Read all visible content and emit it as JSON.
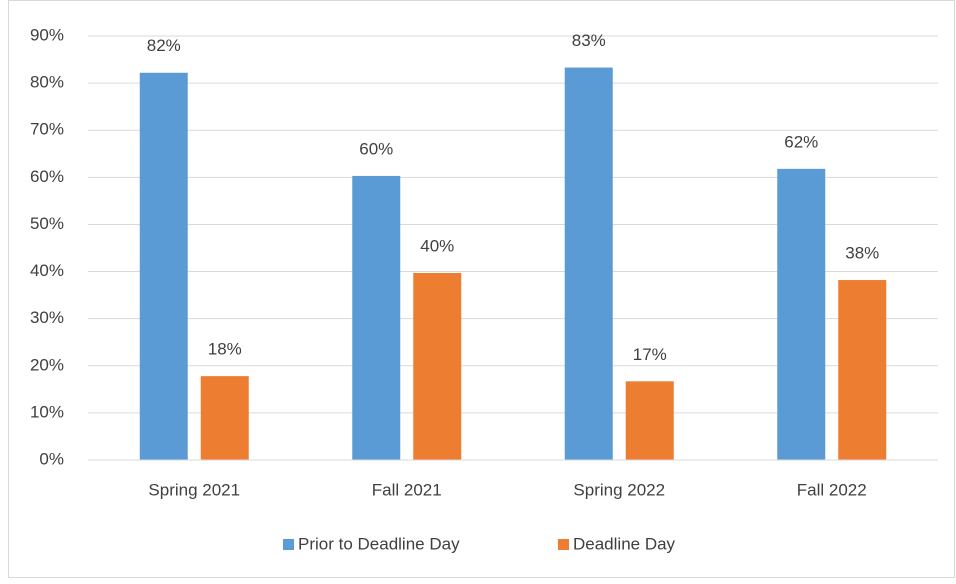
{
  "chart_data": {
    "type": "bar",
    "categories": [
      "Spring 2021",
      "Fall 2021",
      "Spring 2022",
      "Fall 2022"
    ],
    "series": [
      {
        "name": "Prior to Deadline Day",
        "color": "#5b9bd5",
        "values": [
          82.2,
          60.3,
          83.3,
          61.8
        ],
        "value_labels": [
          "82%",
          "60%",
          "83%",
          "62%"
        ]
      },
      {
        "name": "Deadline Day",
        "color": "#ed7d31",
        "values": [
          17.8,
          39.7,
          16.7,
          38.2
        ],
        "value_labels": [
          "18%",
          "40%",
          "17%",
          "38%"
        ]
      }
    ],
    "ylim": [
      0,
      90
    ],
    "yticks": [
      {
        "value": 0,
        "label": "0%"
      },
      {
        "value": 10,
        "label": "10%"
      },
      {
        "value": 20,
        "label": "20%"
      },
      {
        "value": 30,
        "label": "30%"
      },
      {
        "value": 40,
        "label": "40%"
      },
      {
        "value": 50,
        "label": "50%"
      },
      {
        "value": 60,
        "label": "60%"
      },
      {
        "value": 70,
        "label": "70%"
      },
      {
        "value": 80,
        "label": "80%"
      },
      {
        "value": 90,
        "label": "90%"
      }
    ],
    "grid": true,
    "legend": "bottom"
  }
}
